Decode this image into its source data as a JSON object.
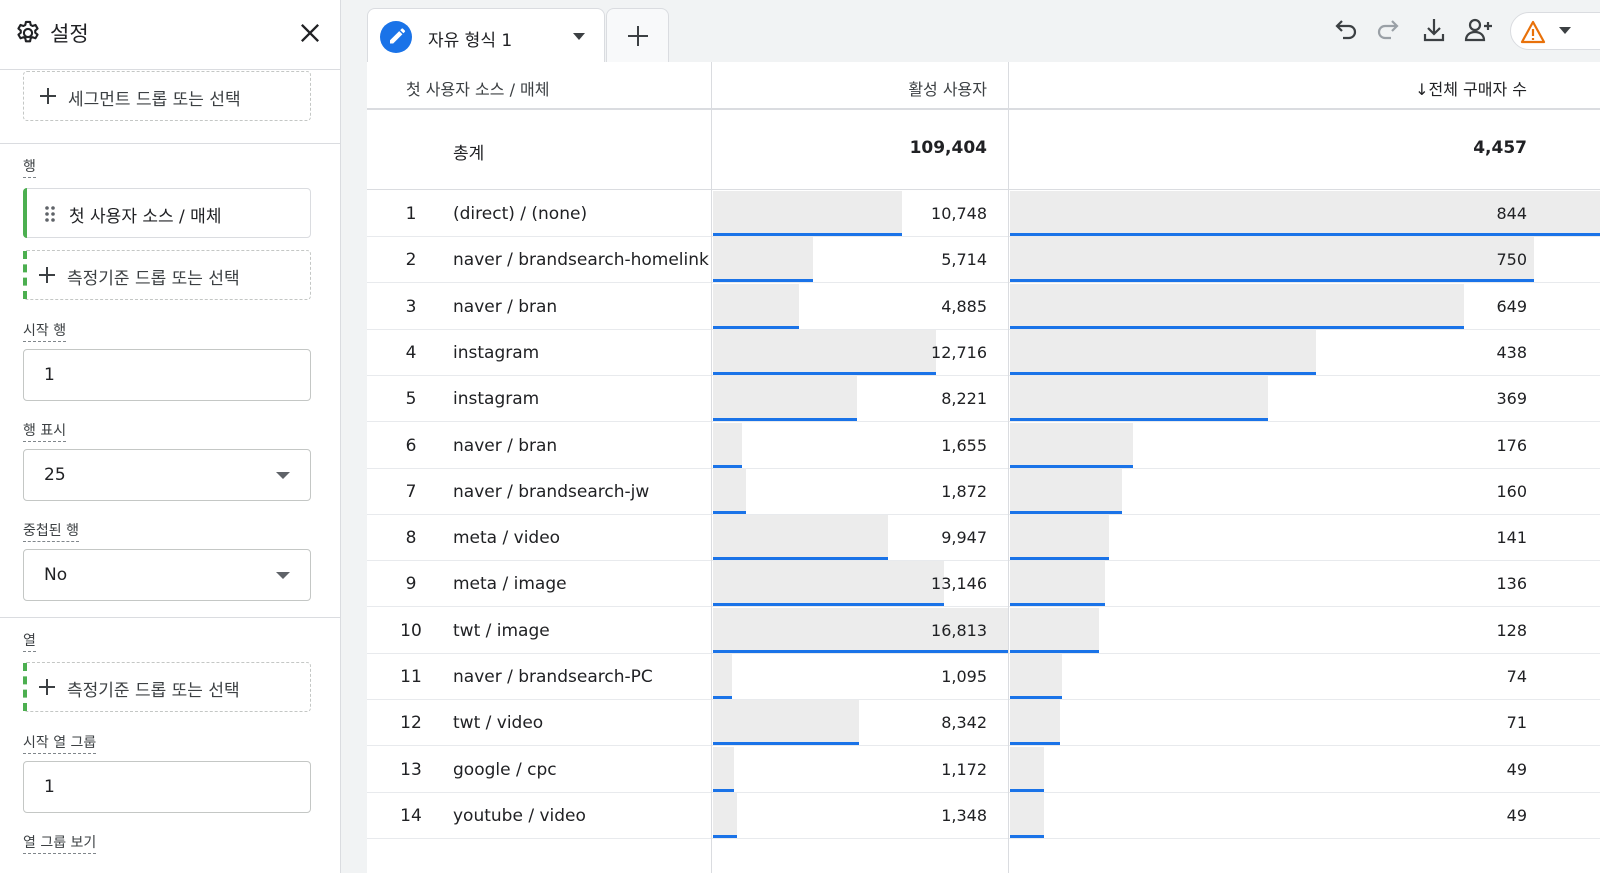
{
  "panel": {
    "title": "설정",
    "segment_drop": "세그먼트 드롭 또는 선택",
    "rows_label": "행",
    "row_dimension": "첫 사용자 소스 / 매체",
    "row_metric_drop": "측정기준 드롭 또는 선택",
    "start_row_label": "시작 행",
    "start_row_value": "1",
    "show_rows_label": "행 표시",
    "show_rows_value": "25",
    "nested_rows_label": "중첩된 행",
    "nested_rows_value": "No",
    "columns_label": "열",
    "column_metric_drop": "측정기준 드롭 또는 선택",
    "start_col_group_label": "시작 열 그룹",
    "start_col_group_value": "1",
    "view_col_group_label": "열 그룹 보기"
  },
  "tab": {
    "label": "자유 형식 1"
  },
  "icons": {
    "settings": "gear-icon",
    "close": "close-icon",
    "edit": "pencil-icon",
    "undo": "undo-icon",
    "redo": "redo-icon",
    "download": "download-icon",
    "share": "add-person-icon",
    "warning": "warning-icon"
  },
  "colors": {
    "accent": "#1a73e8",
    "green": "#4caf50",
    "warning": "#e8710a"
  },
  "table": {
    "headers": {
      "dimension": "첫 사용자 소스 / 매체",
      "active_users": "활성 사용자",
      "buyers": "↓전체 구매자 수"
    },
    "total": {
      "label": "총계",
      "active_users": "109,404",
      "buyers": "4,457"
    },
    "rows": [
      {
        "n": "1",
        "name": "(direct) / (none)",
        "active": "10,748",
        "buyers": "844",
        "a": 10748,
        "b": 844
      },
      {
        "n": "2",
        "name": "naver / brandsearch-homelink",
        "active": "5,714",
        "buyers": "750",
        "a": 5714,
        "b": 750
      },
      {
        "n": "3",
        "name": "naver / bran",
        "active": "4,885",
        "buyers": "649",
        "a": 4885,
        "b": 649
      },
      {
        "n": "4",
        "name": "instagram",
        "active": "12,716",
        "buyers": "438",
        "a": 12716,
        "b": 438
      },
      {
        "n": "5",
        "name": "instagram",
        "active": "8,221",
        "buyers": "369",
        "a": 8221,
        "b": 369
      },
      {
        "n": "6",
        "name": "naver / bran",
        "active": "1,655",
        "buyers": "176",
        "a": 1655,
        "b": 176
      },
      {
        "n": "7",
        "name": "naver / brandsearch-jw",
        "active": "1,872",
        "buyers": "160",
        "a": 1872,
        "b": 160
      },
      {
        "n": "8",
        "name": "meta / video",
        "active": "9,947",
        "buyers": "141",
        "a": 9947,
        "b": 141
      },
      {
        "n": "9",
        "name": "meta / image",
        "active": "13,146",
        "buyers": "136",
        "a": 13146,
        "b": 136
      },
      {
        "n": "10",
        "name": "twt / image",
        "active": "16,813",
        "buyers": "128",
        "a": 16813,
        "b": 128
      },
      {
        "n": "11",
        "name": "naver / brandsearch-PC",
        "active": "1,095",
        "buyers": "74",
        "a": 1095,
        "b": 74
      },
      {
        "n": "12",
        "name": "twt / video",
        "active": "8,342",
        "buyers": "71",
        "a": 8342,
        "b": 71
      },
      {
        "n": "13",
        "name": "google / cpc",
        "active": "1,172",
        "buyers": "49",
        "a": 1172,
        "b": 49
      },
      {
        "n": "14",
        "name": "youtube / video",
        "active": "1,348",
        "buyers": "49",
        "a": 1348,
        "b": 49
      }
    ]
  }
}
